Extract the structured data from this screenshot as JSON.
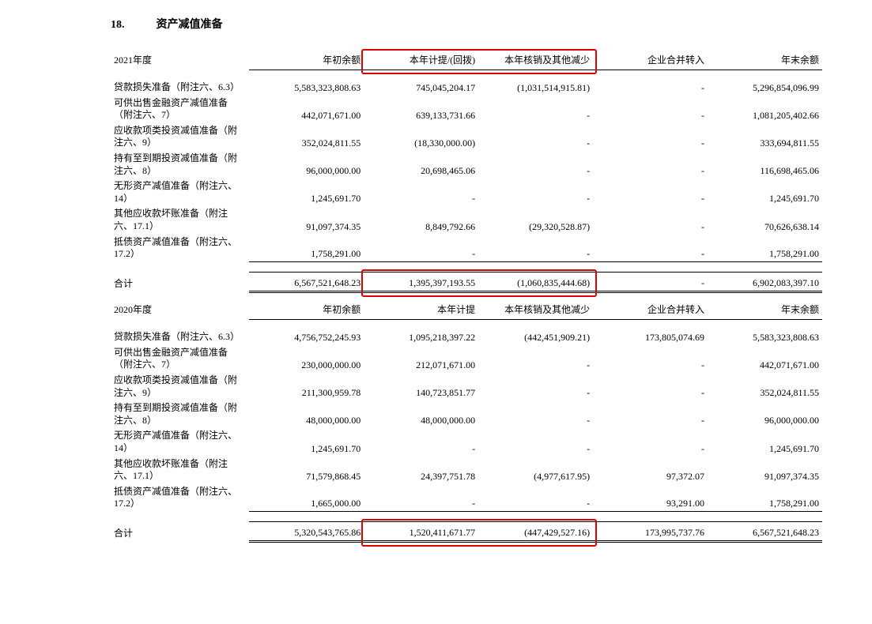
{
  "section": {
    "number": "18.",
    "title": "资产减值准备"
  },
  "tables": [
    {
      "year": "2021年度",
      "headers": [
        "年初余额",
        "本年计提/(回拨)",
        "本年核销及其他减少",
        "企业合并转入",
        "年末余额"
      ],
      "rows": [
        {
          "label": "贷款损失准备（附注六、6.3）",
          "values": [
            "5,583,323,808.63",
            "745,045,204.17",
            "(1,031,514,915.81)",
            "-",
            "5,296,854,096.99"
          ]
        },
        {
          "label": "可供出售金融资产减值准备（附注六、7）",
          "values": [
            "442,071,671.00",
            "639,133,731.66",
            "-",
            "-",
            "1,081,205,402.66"
          ]
        },
        {
          "label": "应收款项类投资减值准备（附注六、9）",
          "values": [
            "352,024,811.55",
            "(18,330,000.00)",
            "-",
            "-",
            "333,694,811.55"
          ]
        },
        {
          "label": "持有至到期投资减值准备（附注六、8）",
          "values": [
            "96,000,000.00",
            "20,698,465.06",
            "-",
            "-",
            "116,698,465.06"
          ]
        },
        {
          "label": "无形资产减值准备（附注六、14）",
          "values": [
            "1,245,691.70",
            "-",
            "-",
            "-",
            "1,245,691.70"
          ]
        },
        {
          "label": "其他应收款坏账准备（附注六、17.1）",
          "values": [
            "91,097,374.35",
            "8,849,792.66",
            "(29,320,528.87)",
            "-",
            "70,626,638.14"
          ]
        },
        {
          "label": "抵债资产减值准备（附注六、17.2）",
          "values": [
            "1,758,291.00",
            "-",
            "-",
            "-",
            "1,758,291.00"
          ]
        }
      ],
      "total": {
        "label": "合计",
        "values": [
          "6,567,521,648.23",
          "1,395,397,193.55",
          "(1,060,835,444.68)",
          "-",
          "6,902,083,397.10"
        ]
      },
      "highlight_header": true,
      "highlight_total_cols": [
        1,
        2
      ]
    },
    {
      "year": "2020年度",
      "headers": [
        "年初余额",
        "本年计提",
        "本年核销及其他减少",
        "企业合并转入",
        "年末余额"
      ],
      "rows": [
        {
          "label": "贷款损失准备（附注六、6.3）",
          "values": [
            "4,756,752,245.93",
            "1,095,218,397.22",
            "(442,451,909.21)",
            "173,805,074.69",
            "5,583,323,808.63"
          ]
        },
        {
          "label": "可供出售金融资产减值准备（附注六、7）",
          "values": [
            "230,000,000.00",
            "212,071,671.00",
            "-",
            "-",
            "442,071,671.00"
          ]
        },
        {
          "label": "应收款项类投资减值准备（附注六、9）",
          "values": [
            "211,300,959.78",
            "140,723,851.77",
            "-",
            "-",
            "352,024,811.55"
          ]
        },
        {
          "label": "持有至到期投资减值准备（附注六、8）",
          "values": [
            "48,000,000.00",
            "48,000,000.00",
            "-",
            "-",
            "96,000,000.00"
          ]
        },
        {
          "label": "无形资产减值准备（附注六、14）",
          "values": [
            "1,245,691.70",
            "-",
            "-",
            "-",
            "1,245,691.70"
          ]
        },
        {
          "label": "其他应收款坏账准备（附注六、17.1）",
          "values": [
            "71,579,868.45",
            "24,397,751.78",
            "(4,977,617.95)",
            "97,372.07",
            "91,097,374.35"
          ]
        },
        {
          "label": "抵债资产减值准备（附注六、17.2）",
          "values": [
            "1,665,000.00",
            "-",
            "-",
            "93,291.00",
            "1,758,291.00"
          ]
        }
      ],
      "total": {
        "label": "合计",
        "values": [
          "5,320,543,765.86",
          "1,520,411,671.77",
          "(447,429,527.16)",
          "173,995,737.76",
          "6,567,521,648.23"
        ]
      },
      "highlight_header": false,
      "highlight_total_cols": [
        1,
        2
      ]
    }
  ],
  "style": {
    "highlight_color": "#d00",
    "underline_color": "#000"
  }
}
